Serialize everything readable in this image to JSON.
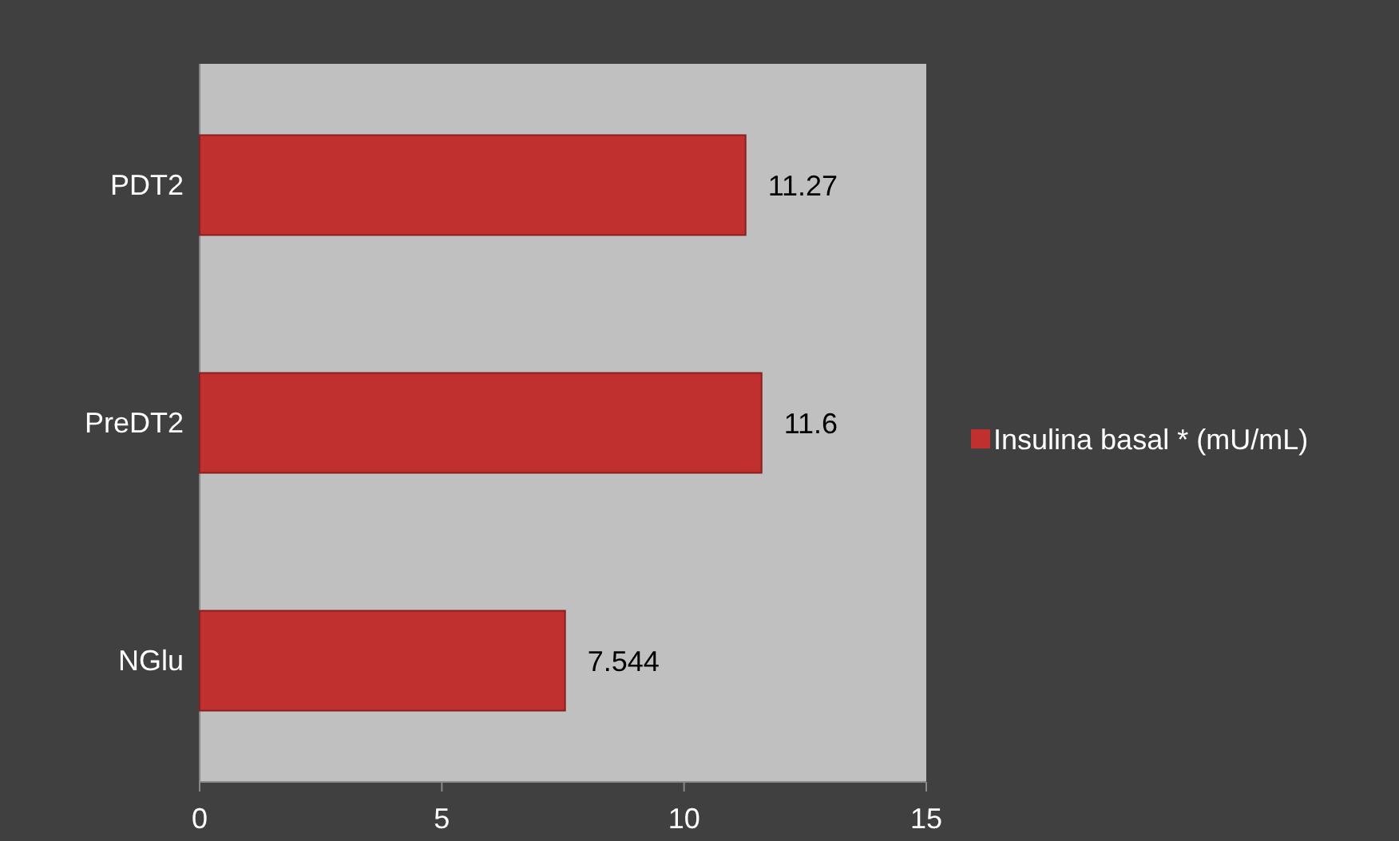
{
  "chart_data": {
    "type": "bar",
    "orientation": "horizontal",
    "categories": [
      "PDT2",
      "PreDT2",
      "NGlu"
    ],
    "series": [
      {
        "name": "Insulina basal * (mU/mL)",
        "color": "#c0302f",
        "values": [
          11.27,
          11.6,
          7.544
        ]
      }
    ],
    "xlim": [
      0,
      15
    ],
    "xticks": [
      0,
      5,
      10,
      15
    ],
    "data_labels": true,
    "legend": "right",
    "grid": false
  }
}
